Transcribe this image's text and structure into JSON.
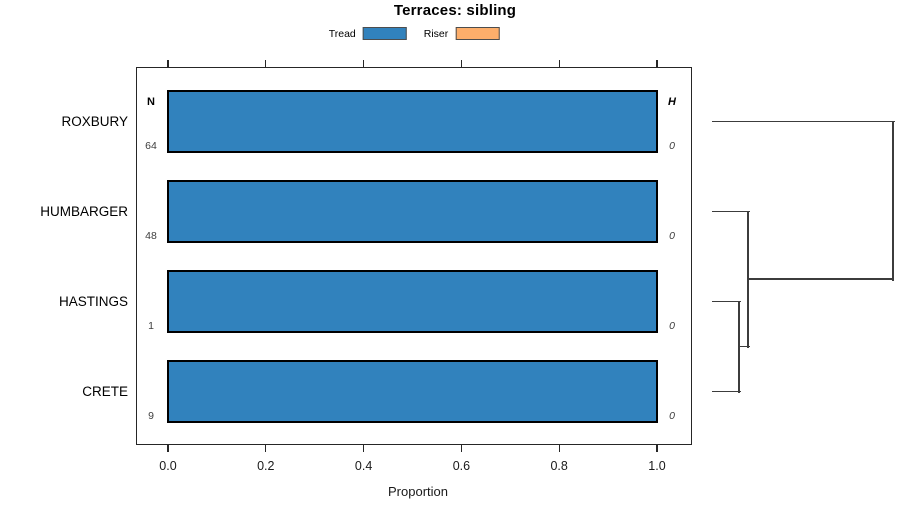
{
  "title": "Terraces: sibling",
  "legend": [
    {
      "label": "Tread",
      "color": "#3182bd"
    },
    {
      "label": "Riser",
      "color": "#fdae6b"
    }
  ],
  "chart_data": {
    "type": "bar",
    "orientation": "horizontal",
    "title": "Terraces: sibling",
    "xlabel": "Proportion",
    "xlim": [
      0,
      1
    ],
    "xticks": [
      0,
      0.2,
      0.4,
      0.6,
      0.8,
      1.0
    ],
    "xtick_labels": [
      "0.0",
      "0.2",
      "0.4",
      "0.6",
      "0.8",
      "1.0"
    ],
    "grid": false,
    "legend_position": "top",
    "categories": [
      "ROXBURY",
      "HUMBARGER",
      "HASTINGS",
      "CRETE"
    ],
    "series": [
      {
        "name": "Tread",
        "color": "#3182bd",
        "values": [
          1.0,
          1.0,
          1.0,
          1.0
        ]
      },
      {
        "name": "Riser",
        "color": "#fdae6b",
        "values": [
          0,
          0,
          0,
          0
        ]
      }
    ],
    "n_column": {
      "header": "N",
      "values": [
        "64",
        "48",
        "1",
        "9"
      ]
    },
    "h_column": {
      "header": "H",
      "values": [
        "0",
        "0",
        "0",
        "0"
      ]
    },
    "dendrogram": {
      "position": "right",
      "leaves": [
        "ROXBURY",
        "HUMBARGER",
        "HASTINGS",
        "CRETE"
      ],
      "merges": [
        {
          "children": [
            "HASTINGS",
            "CRETE"
          ],
          "height": 0.15
        },
        {
          "children": [
            "HUMBARGER",
            "M0"
          ],
          "height": 0.2
        },
        {
          "children": [
            "ROXBURY",
            "M1"
          ],
          "height": 1.0
        }
      ]
    }
  }
}
